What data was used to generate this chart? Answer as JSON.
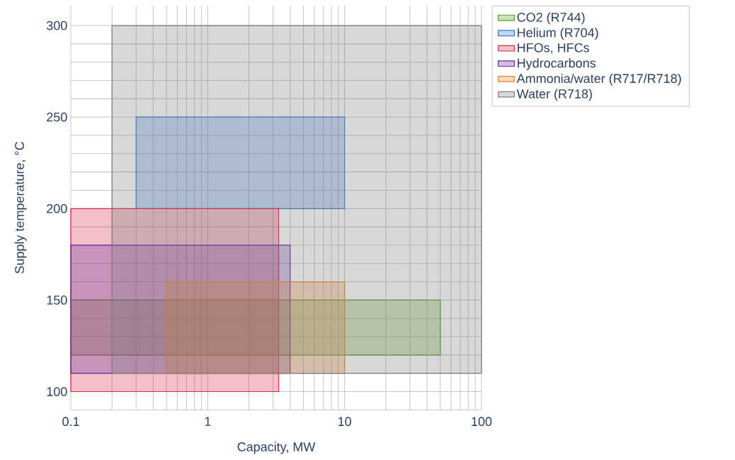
{
  "chart_data": {
    "type": "area",
    "xlabel": "Capacity, MW",
    "ylabel": "Supply temperature, °C",
    "log": "x",
    "grid": true,
    "legend": "top right",
    "xlim": [
      0.1,
      100
    ],
    "ylim": [
      90,
      311
    ],
    "xticks": [
      0.1,
      {
        "value": 0.2,
        "label": null
      },
      {
        "value": 0.3,
        "label": null
      },
      {
        "value": 0.4,
        "label": null
      },
      {
        "value": 0.5,
        "label": null
      },
      {
        "value": 0.6,
        "label": null
      },
      {
        "value": 0.7,
        "label": null
      },
      {
        "value": 0.8,
        "label": null
      },
      {
        "value": 0.9,
        "label": null
      },
      1,
      {
        "value": 2,
        "label": null
      },
      {
        "value": 3,
        "label": null
      },
      {
        "value": 4,
        "label": null
      },
      {
        "value": 5,
        "label": null
      },
      {
        "value": 6,
        "label": null
      },
      {
        "value": 7,
        "label": null
      },
      {
        "value": 8,
        "label": null
      },
      {
        "value": 9,
        "label": null
      },
      10,
      {
        "value": 20,
        "label": null
      },
      {
        "value": 30,
        "label": null
      },
      {
        "value": 40,
        "label": null
      },
      {
        "value": 50,
        "label": null
      },
      {
        "value": 60,
        "label": null
      },
      {
        "value": 70,
        "label": null
      },
      {
        "value": 80,
        "label": null
      },
      {
        "value": 90,
        "label": null
      },
      100
    ],
    "yticks": [
      {
        "value": 90,
        "label": null
      },
      100,
      {
        "value": 110,
        "label": null
      },
      {
        "value": 120,
        "label": null
      },
      {
        "value": 130,
        "label": null
      },
      {
        "value": 140,
        "label": null
      },
      150,
      {
        "value": 160,
        "label": null
      },
      {
        "value": 170,
        "label": null
      },
      {
        "value": 180,
        "label": null
      },
      {
        "value": 190,
        "label": null
      },
      200,
      {
        "value": 210,
        "label": null
      },
      {
        "value": 220,
        "label": null
      },
      {
        "value": 230,
        "label": null
      },
      {
        "value": 240,
        "label": null
      },
      250,
      {
        "value": 260,
        "label": null
      },
      {
        "value": 270,
        "label": null
      },
      {
        "value": 280,
        "label": null
      },
      {
        "value": 290,
        "label": null
      },
      300
    ],
    "series": [
      {
        "name": "CO2 (R744)",
        "color": "#5a9a2a",
        "x": [
          0.1,
          50,
          50,
          0.1
        ],
        "values": [
          120,
          120,
          150,
          150
        ]
      },
      {
        "name": "Helium (R704)",
        "color": "#3c78d8",
        "x": [
          0.3,
          10,
          10,
          0.3
        ],
        "values": [
          200,
          200,
          250,
          250
        ]
      },
      {
        "name": "HFOs, HFCs",
        "color": "#d62c4a",
        "x": [
          0.1,
          3.3,
          3.3,
          0.1
        ],
        "values": [
          100,
          100,
          200,
          200
        ]
      },
      {
        "name": "Hydrocarbons",
        "color": "#6a2aa0",
        "x": [
          0.1,
          4,
          4,
          0.1
        ],
        "values": [
          110,
          110,
          180,
          180
        ]
      },
      {
        "name": "Ammonia/water (R717/R718)",
        "color": "#e8862a",
        "x": [
          0.5,
          10,
          10,
          0.5
        ],
        "values": [
          110,
          110,
          160,
          160
        ]
      },
      {
        "name": "Water (R718)",
        "color": "#7f7f7f",
        "x": [
          0.2,
          100,
          100,
          0.2
        ],
        "values": [
          110,
          110,
          300,
          300
        ]
      }
    ]
  }
}
